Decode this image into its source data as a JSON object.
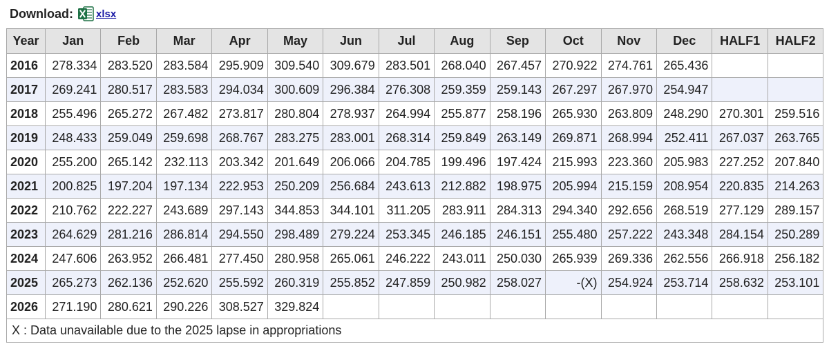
{
  "download": {
    "label": "Download:",
    "link_text": "xlsx",
    "icon": "excel-icon"
  },
  "table": {
    "columns": [
      "Year",
      "Jan",
      "Feb",
      "Mar",
      "Apr",
      "May",
      "Jun",
      "Jul",
      "Aug",
      "Sep",
      "Oct",
      "Nov",
      "Dec",
      "HALF1",
      "HALF2"
    ],
    "rows": [
      [
        "2016",
        "278.334",
        "283.520",
        "283.584",
        "295.909",
        "309.540",
        "309.679",
        "283.501",
        "268.040",
        "267.457",
        "270.922",
        "274.761",
        "265.436",
        "",
        ""
      ],
      [
        "2017",
        "269.241",
        "280.517",
        "283.583",
        "294.034",
        "300.609",
        "296.384",
        "276.308",
        "259.359",
        "259.143",
        "267.297",
        "267.970",
        "254.947",
        "",
        ""
      ],
      [
        "2018",
        "255.496",
        "265.272",
        "267.482",
        "273.817",
        "280.804",
        "278.937",
        "264.994",
        "255.877",
        "258.196",
        "265.930",
        "263.809",
        "248.290",
        "270.301",
        "259.516"
      ],
      [
        "2019",
        "248.433",
        "259.049",
        "259.698",
        "268.767",
        "283.275",
        "283.001",
        "268.314",
        "259.849",
        "263.149",
        "269.871",
        "268.994",
        "252.411",
        "267.037",
        "263.765"
      ],
      [
        "2020",
        "255.200",
        "265.142",
        "232.113",
        "203.342",
        "201.649",
        "206.066",
        "204.785",
        "199.496",
        "197.424",
        "215.993",
        "223.360",
        "205.983",
        "227.252",
        "207.840"
      ],
      [
        "2021",
        "200.825",
        "197.204",
        "197.134",
        "222.953",
        "250.209",
        "256.684",
        "243.613",
        "212.882",
        "198.975",
        "205.994",
        "215.159",
        "208.954",
        "220.835",
        "214.263"
      ],
      [
        "2022",
        "210.762",
        "222.227",
        "243.689",
        "297.143",
        "344.853",
        "344.101",
        "311.205",
        "283.911",
        "284.313",
        "294.340",
        "292.656",
        "268.519",
        "277.129",
        "289.157"
      ],
      [
        "2023",
        "264.629",
        "281.216",
        "286.814",
        "294.550",
        "298.489",
        "279.224",
        "253.345",
        "246.185",
        "246.151",
        "255.480",
        "257.222",
        "243.348",
        "284.154",
        "250.289"
      ],
      [
        "2024",
        "247.606",
        "263.952",
        "266.481",
        "277.450",
        "280.958",
        "265.061",
        "246.222",
        "243.011",
        "250.030",
        "265.939",
        "269.336",
        "262.556",
        "266.918",
        "256.182"
      ],
      [
        "2025",
        "265.273",
        "262.136",
        "252.620",
        "255.592",
        "260.319",
        "255.852",
        "247.859",
        "250.982",
        "258.027",
        "-(X)",
        "254.924",
        "253.714",
        "258.632",
        "253.101"
      ],
      [
        "2026",
        "271.190",
        "280.621",
        "290.226",
        "308.527",
        "329.824",
        "",
        "",
        "",
        "",
        "",
        "",
        "",
        "",
        ""
      ]
    ],
    "footnote": "X : Data unavailable due to the 2025 lapse in appropriations"
  }
}
